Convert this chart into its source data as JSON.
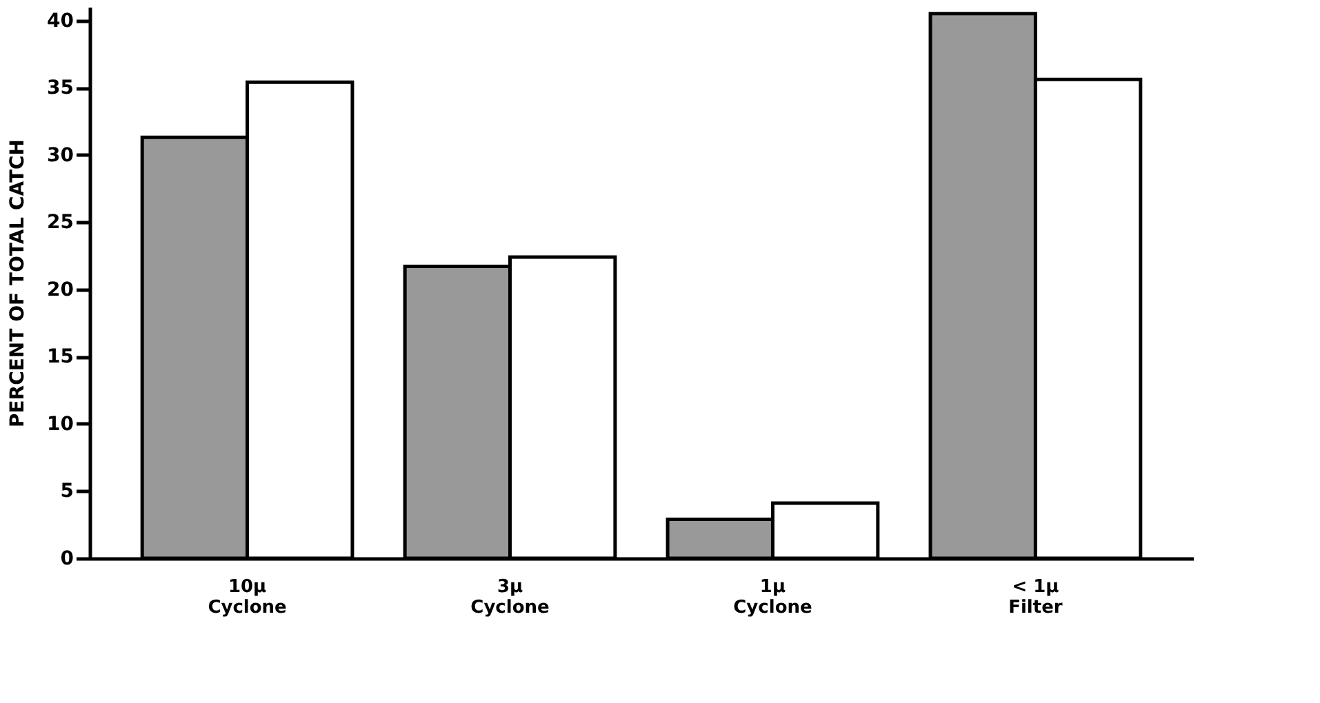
{
  "chart_data": {
    "type": "bar",
    "ylabel": "PERCENT OF TOTAL CATCH",
    "categories": [
      "10μ\nCyclone",
      "3μ\nCyclone",
      "1μ\nCyclone",
      "< 1μ\nFilter"
    ],
    "series": [
      {
        "color": "#999999",
        "values": [
          31.3,
          21.7,
          2.9,
          40.5
        ]
      },
      {
        "color": "#ffffff",
        "values": [
          35.4,
          22.4,
          4.1,
          35.6
        ]
      }
    ],
    "ylim": [
      0,
      41
    ],
    "yticks": [
      0,
      5,
      10,
      15,
      20,
      25,
      30,
      35,
      40
    ],
    "grid": false
  }
}
